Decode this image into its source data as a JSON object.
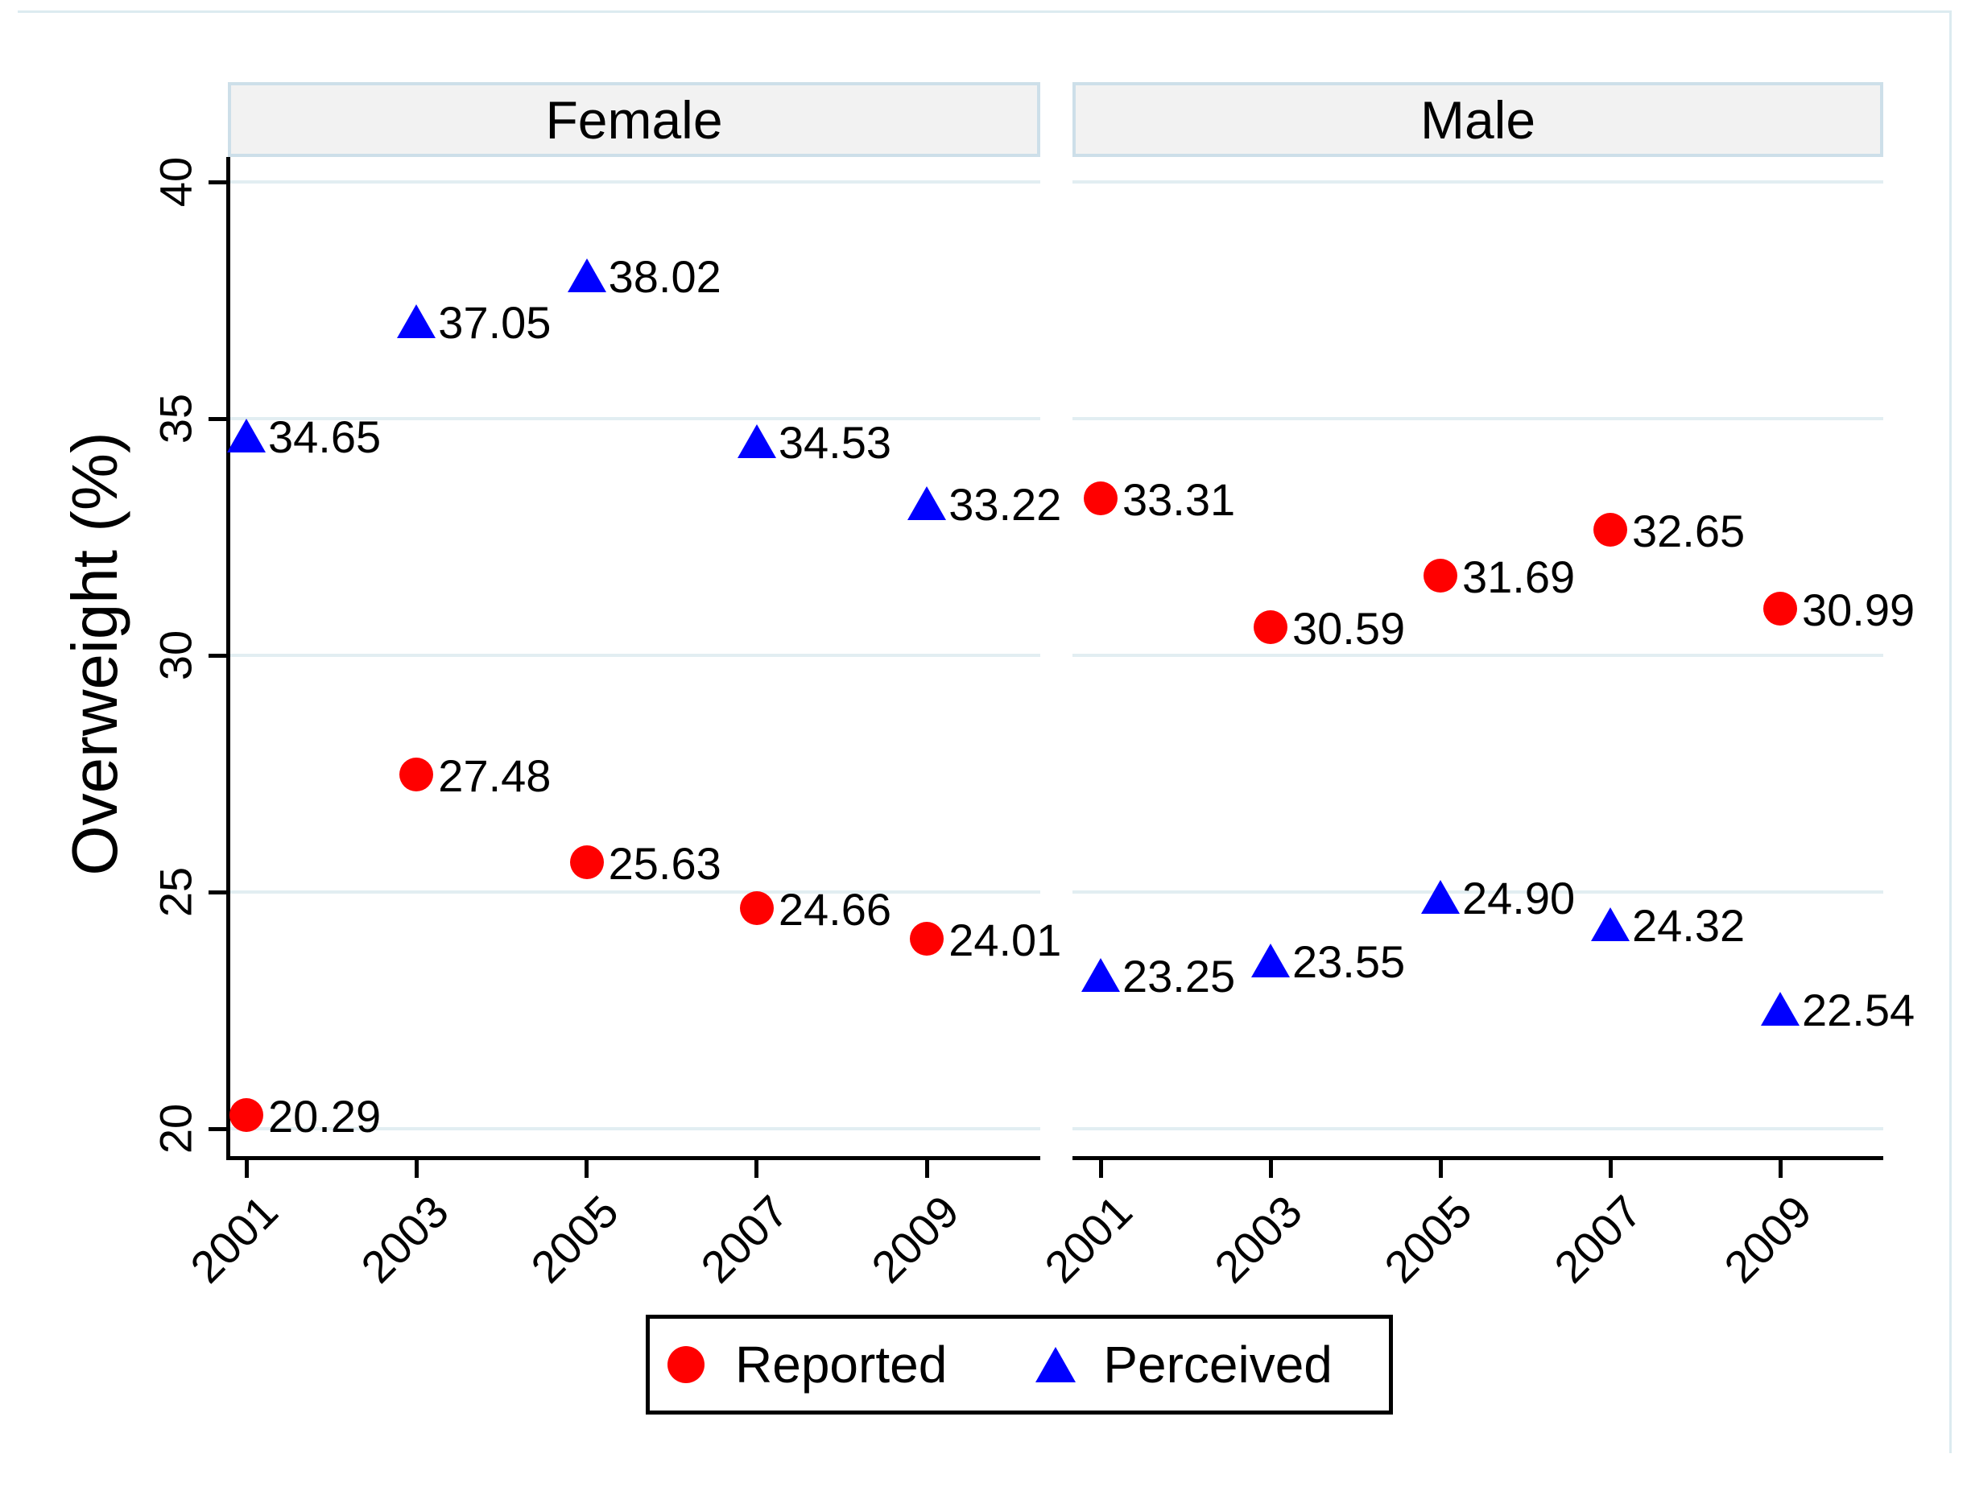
{
  "colors": {
    "reported": "#ff0000",
    "perceived": "#0000ff",
    "grid": "#e2eef2",
    "axis": "#000000",
    "header_fill": "#f2f2f2",
    "header_border": "#cddfe9",
    "outer_border": "#dcebf0",
    "text": "#000000",
    "background": "#ffffff"
  },
  "chart_data": {
    "type": "scatter",
    "title": "",
    "ylabel": "Overweight (%)",
    "xlabel": "",
    "facets": [
      "Female",
      "Male"
    ],
    "x": [
      2001,
      2003,
      2005,
      2007,
      2009
    ],
    "x_tick_labels": [
      "2001",
      "2003",
      "2005",
      "2007",
      "2009"
    ],
    "y_ticks": [
      20,
      25,
      30,
      35,
      40
    ],
    "y_tick_labels": [
      "20",
      "25",
      "30",
      "35",
      "40"
    ],
    "ylim": [
      19.39,
      40.54
    ],
    "grid": true,
    "legend_position": "bottom",
    "series": [
      {
        "name": "Reported",
        "marker": "circle",
        "color": "#ff0000",
        "facet_values": {
          "Female": [
            20.29,
            27.48,
            25.63,
            24.66,
            24.01
          ],
          "Male": [
            33.31,
            30.59,
            31.69,
            32.65,
            30.99
          ]
        },
        "point_labels": {
          "Female": [
            "20.29",
            "27.48",
            "25.63",
            "24.66",
            "24.01"
          ],
          "Male": [
            "33.31",
            "30.59",
            "31.69",
            "32.65",
            "30.99"
          ]
        }
      },
      {
        "name": "Perceived",
        "marker": "triangle",
        "color": "#0000ff",
        "facet_values": {
          "Female": [
            34.65,
            37.05,
            38.02,
            34.53,
            33.22
          ],
          "Male": [
            23.25,
            23.55,
            24.9,
            24.32,
            22.54
          ]
        },
        "point_labels": {
          "Female": [
            "34.65",
            "37.05",
            "38.02",
            "34.53",
            "33.22"
          ],
          "Male": [
            "23.25",
            "23.55",
            "24.90",
            "24.32",
            "22.54"
          ]
        }
      }
    ],
    "legend": {
      "items": [
        {
          "label": "Reported",
          "marker": "circle",
          "color": "#ff0000"
        },
        {
          "label": "Perceived",
          "marker": "triangle",
          "color": "#0000ff"
        }
      ]
    }
  }
}
